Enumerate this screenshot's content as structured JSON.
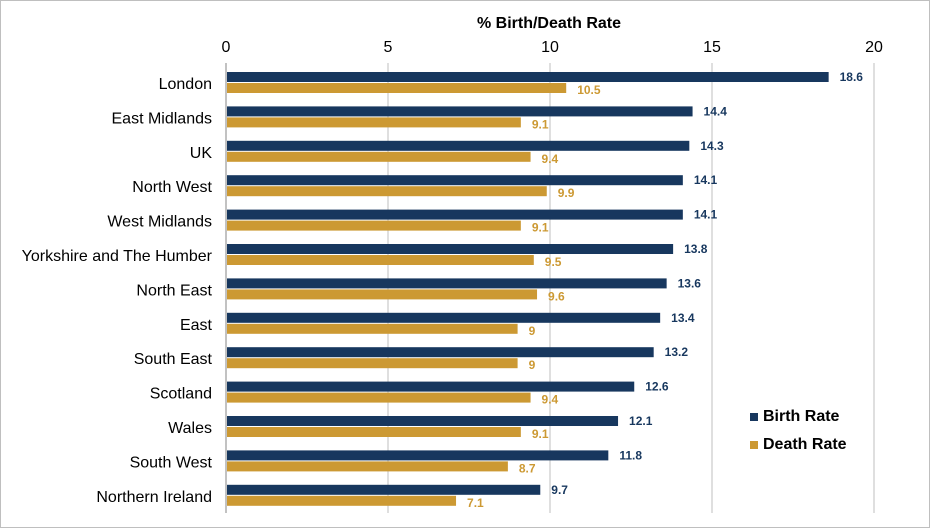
{
  "chart_data": {
    "type": "bar",
    "orientation": "horizontal",
    "title": "",
    "xlabel": "% Birth/Death Rate",
    "ylabel": "",
    "xlim": [
      0,
      20
    ],
    "xticks": [
      0,
      5,
      10,
      15,
      20
    ],
    "x_axis_position": "top",
    "grid": true,
    "legend_position": "bottom-right",
    "categories": [
      "London",
      "East Midlands",
      "UK",
      "North West",
      "West Midlands",
      "Yorkshire and The Humber",
      "North East",
      "East",
      "South East",
      "Scotland",
      "Wales",
      "South West",
      "Northern Ireland"
    ],
    "series": [
      {
        "name": "Birth Rate",
        "color": "#17375e",
        "values": [
          18.6,
          14.4,
          14.3,
          14.1,
          14.1,
          13.8,
          13.6,
          13.4,
          13.2,
          12.6,
          12.1,
          11.8,
          9.7
        ]
      },
      {
        "name": "Death Rate",
        "color": "#cc9933",
        "values": [
          10.5,
          9.1,
          9.4,
          9.9,
          9.1,
          9.5,
          9.6,
          9,
          9,
          9.4,
          9.1,
          8.7,
          7.1
        ]
      }
    ]
  }
}
